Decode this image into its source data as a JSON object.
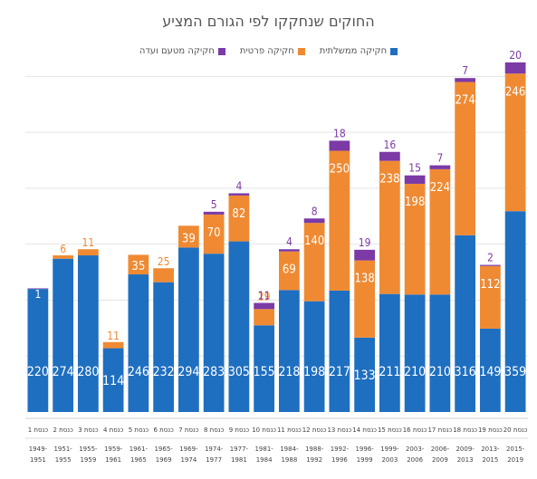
{
  "chart_data": {
    "type": "bar",
    "stacked": true,
    "title": "החוקים שנחקקו לפי הגורם המציע",
    "legend_position": "top-center",
    "grid": true,
    "ylim": [
      0,
      620
    ],
    "categories": [
      "1949-1951",
      "1951-1955",
      "1955-1959",
      "1959-1961",
      "1961-1965",
      "1965-1969",
      "1969-1974",
      "1974-1977",
      "1977-1981",
      "1981-1984",
      "1984-1988",
      "1988-1992",
      "1992-1996",
      "1996-1999",
      "1999-2003",
      "2003-2006",
      "2006-2009",
      "2009-2013",
      "2013-2015",
      "2015-2019"
    ],
    "knesset_labels": [
      "כנסת 1",
      "כנסת 2",
      "כנסת 3",
      "כנסת 4",
      "כנסת 5",
      "כנסת 6",
      "כנסת 7",
      "כנסת 8",
      "כנסת 9",
      "כנסת 10",
      "כנסת 11",
      "כנסת 12",
      "כנסת 13",
      "כנסת 14",
      "כנסת 15",
      "כנסת 16",
      "כנסת 17",
      "כנסת 18",
      "כנסת 19",
      "כנסת 20"
    ],
    "series": [
      {
        "name": "חקיקה ממשלתית",
        "color": "#1f6fc0",
        "label_color": "#ffffff",
        "values": [
          220,
          274,
          280,
          114,
          246,
          232,
          294,
          283,
          305,
          155,
          218,
          198,
          217,
          133,
          211,
          210,
          210,
          316,
          149,
          359
        ]
      },
      {
        "name": "חקיקה פרטית",
        "color": "#ef8a33",
        "label_color": "#ffffff",
        "values": [
          0,
          6,
          11,
          11,
          35,
          25,
          39,
          70,
          82,
          29,
          69,
          140,
          250,
          138,
          238,
          198,
          224,
          274,
          112,
          246
        ]
      },
      {
        "name": "חקיקה מטעם ועדה",
        "color": "#7b3aa6",
        "label_color": "#7b3aa6",
        "values": [
          1,
          0,
          0,
          0,
          0,
          0,
          0,
          5,
          4,
          11,
          4,
          8,
          18,
          19,
          16,
          15,
          7,
          7,
          2,
          20
        ]
      }
    ],
    "printed_labels": {
      "committee": [
        "1",
        "",
        "",
        "",
        "",
        "",
        "",
        "5",
        "4",
        "11",
        "4",
        "8",
        "18",
        "19",
        "16",
        "15",
        "7",
        "7",
        "2",
        "20"
      ],
      "private": [
        "",
        "6",
        "11",
        "11",
        "35",
        "25",
        "39",
        "70",
        "82",
        "29",
        "69",
        "140",
        "250",
        "138",
        "238",
        "198",
        "224",
        "274",
        "112",
        "246"
      ]
    }
  }
}
